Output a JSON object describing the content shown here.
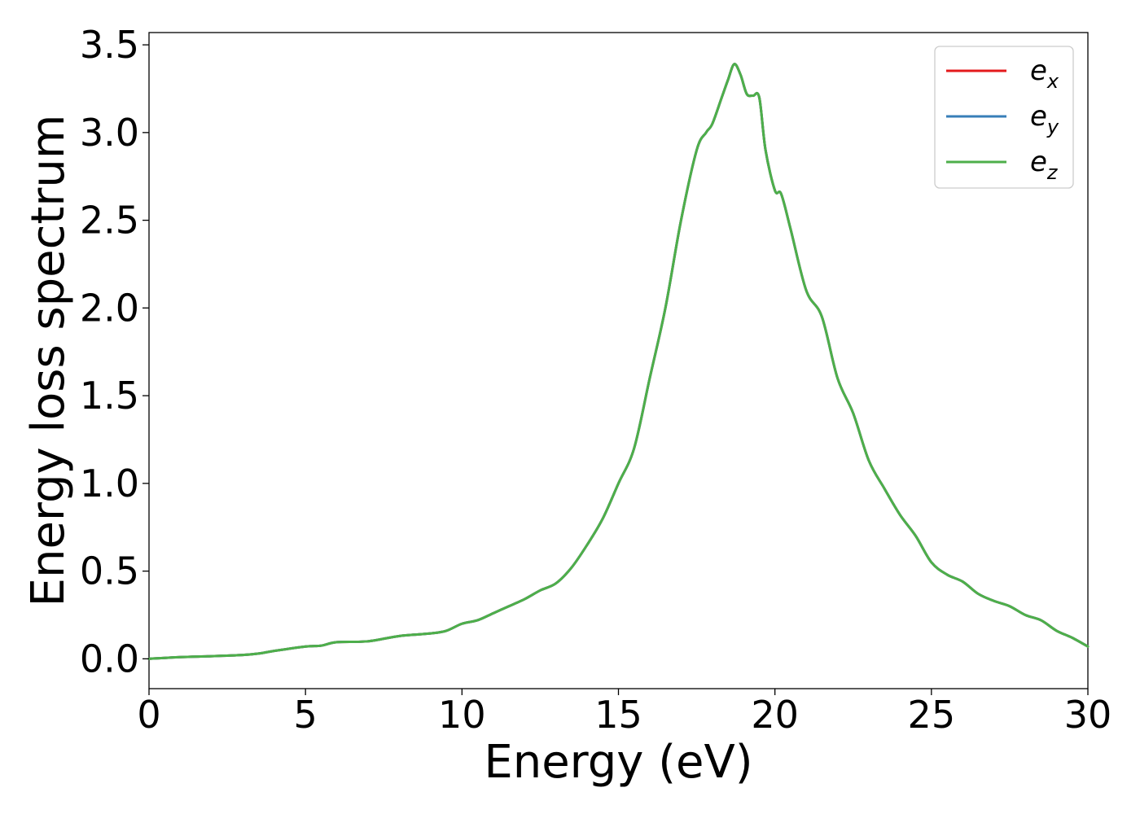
{
  "chart_data": {
    "type": "line",
    "xlabel": "Energy (eV)",
    "ylabel": "Energy loss spectrum",
    "xlim": [
      0,
      30
    ],
    "ylim": [
      -0.17,
      3.57
    ],
    "x_ticks": [
      0,
      5,
      10,
      15,
      20,
      25,
      30
    ],
    "x_tick_labels": [
      "0",
      "5",
      "10",
      "15",
      "20",
      "25",
      "30"
    ],
    "y_ticks": [
      0.0,
      0.5,
      1.0,
      1.5,
      2.0,
      2.5,
      3.0,
      3.5
    ],
    "y_tick_labels": [
      "0.0",
      "0.5",
      "1.0",
      "1.5",
      "2.0",
      "2.5",
      "3.0",
      "3.5"
    ],
    "grid": false,
    "legend_position": "top-right",
    "x": [
      0,
      1,
      2,
      3,
      3.5,
      4,
      5,
      5.5,
      6,
      7,
      8,
      9,
      9.5,
      10,
      10.5,
      11,
      11.5,
      12,
      12.5,
      13,
      13.5,
      14,
      14.5,
      15,
      15.5,
      16,
      16.5,
      17,
      17.5,
      17.8,
      18,
      18.3,
      18.5,
      18.7,
      18.9,
      19.1,
      19.3,
      19.5,
      19.7,
      20.0,
      20.2,
      20.5,
      21,
      21.5,
      22,
      22.5,
      23,
      23.5,
      24,
      24.5,
      25,
      25.5,
      26,
      26.5,
      27,
      27.5,
      28,
      28.5,
      29,
      29.5,
      30
    ],
    "series": [
      {
        "name": "e_x",
        "label_base": "e",
        "label_sub": "x",
        "color": "#e41a1c",
        "values": [
          0.0,
          0.01,
          0.015,
          0.022,
          0.03,
          0.045,
          0.07,
          0.075,
          0.095,
          0.1,
          0.13,
          0.145,
          0.16,
          0.2,
          0.22,
          0.26,
          0.3,
          0.34,
          0.39,
          0.43,
          0.52,
          0.65,
          0.8,
          1.0,
          1.2,
          1.6,
          2.0,
          2.5,
          2.9,
          3.0,
          3.05,
          3.2,
          3.3,
          3.39,
          3.33,
          3.22,
          3.21,
          3.2,
          2.9,
          2.67,
          2.65,
          2.45,
          2.1,
          1.95,
          1.6,
          1.4,
          1.13,
          0.97,
          0.82,
          0.7,
          0.55,
          0.48,
          0.44,
          0.37,
          0.33,
          0.3,
          0.25,
          0.22,
          0.16,
          0.12,
          0.07
        ]
      },
      {
        "name": "e_y",
        "label_base": "e",
        "label_sub": "y",
        "color": "#377eb8",
        "values": [
          0.0,
          0.01,
          0.015,
          0.022,
          0.03,
          0.045,
          0.07,
          0.075,
          0.095,
          0.1,
          0.13,
          0.145,
          0.16,
          0.2,
          0.22,
          0.26,
          0.3,
          0.34,
          0.39,
          0.43,
          0.52,
          0.65,
          0.8,
          1.0,
          1.2,
          1.6,
          2.0,
          2.5,
          2.9,
          3.0,
          3.05,
          3.2,
          3.3,
          3.39,
          3.33,
          3.22,
          3.21,
          3.2,
          2.9,
          2.67,
          2.65,
          2.45,
          2.1,
          1.95,
          1.6,
          1.4,
          1.13,
          0.97,
          0.82,
          0.7,
          0.55,
          0.48,
          0.44,
          0.37,
          0.33,
          0.3,
          0.25,
          0.22,
          0.16,
          0.12,
          0.07
        ]
      },
      {
        "name": "e_z",
        "label_base": "e",
        "label_sub": "z",
        "color": "#4daf4a",
        "values": [
          0.0,
          0.01,
          0.015,
          0.022,
          0.03,
          0.045,
          0.07,
          0.075,
          0.095,
          0.1,
          0.13,
          0.145,
          0.16,
          0.2,
          0.22,
          0.26,
          0.3,
          0.34,
          0.39,
          0.43,
          0.52,
          0.65,
          0.8,
          1.0,
          1.2,
          1.6,
          2.0,
          2.5,
          2.9,
          3.0,
          3.05,
          3.2,
          3.3,
          3.39,
          3.33,
          3.22,
          3.21,
          3.2,
          2.9,
          2.67,
          2.65,
          2.45,
          2.1,
          1.95,
          1.6,
          1.4,
          1.13,
          0.97,
          0.82,
          0.7,
          0.55,
          0.48,
          0.44,
          0.37,
          0.33,
          0.3,
          0.25,
          0.22,
          0.16,
          0.12,
          0.07
        ]
      }
    ]
  }
}
